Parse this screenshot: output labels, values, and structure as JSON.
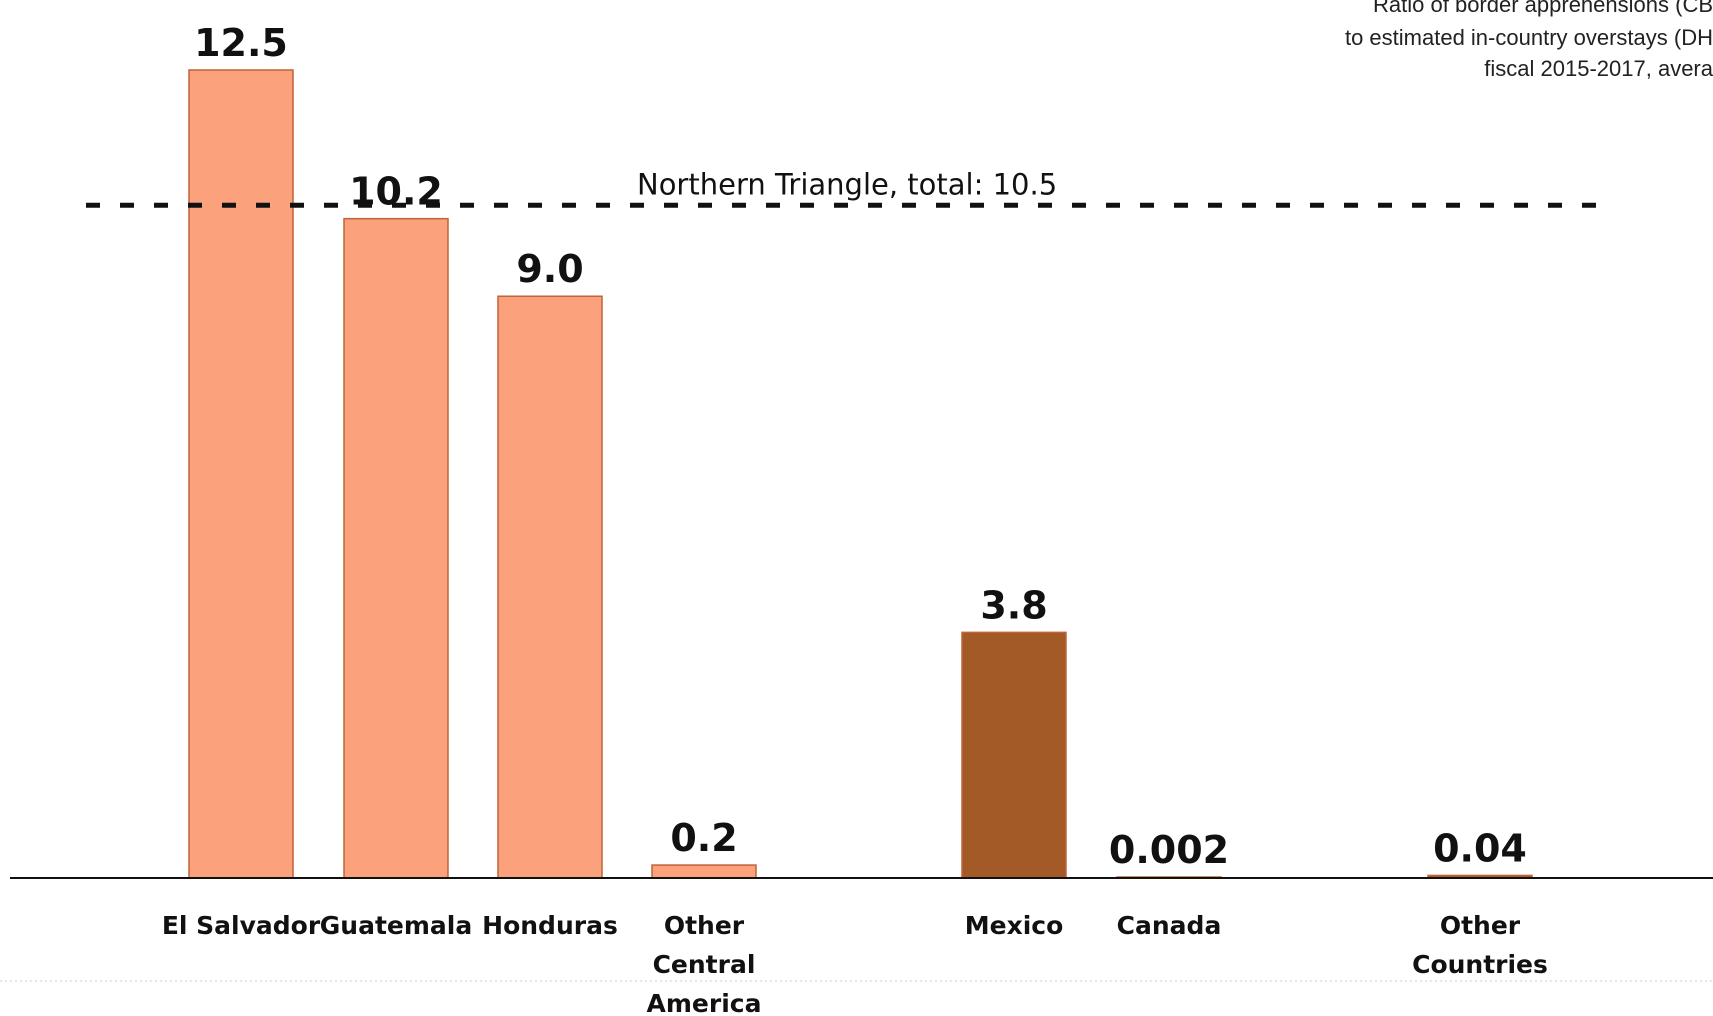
{
  "chart_data": {
    "type": "bar",
    "subtitle": [
      "Ratio of border apprehensions (CB",
      "to estimated in-country overstays (DH",
      "fiscal 2015-2017, avera"
    ],
    "categories": [
      [
        "El Salvador"
      ],
      [
        "Guatemala"
      ],
      [
        "Honduras"
      ],
      [
        "Other",
        "Central",
        "America"
      ],
      [
        "Mexico"
      ],
      [
        "Canada"
      ],
      [
        "Other",
        "Countries"
      ]
    ],
    "values": [
      12.5,
      10.2,
      9.0,
      0.2,
      3.8,
      0.002,
      0.04
    ],
    "value_labels": [
      "12.5",
      "10.2",
      "9.0",
      "0.2",
      "3.8",
      "0.002",
      "0.04"
    ],
    "colors": [
      "#fba27c",
      "#fba27c",
      "#fba27c",
      "#fba27c",
      "#a35a26",
      "#a35a26",
      "#a35a26"
    ],
    "bar_edge_color": "#c0633a",
    "ylim": [
      0,
      12.5
    ],
    "grid": false,
    "reference_line": {
      "value": 10.5,
      "label": "Northern Triangle, total: 10.5",
      "style": "dashed"
    }
  }
}
